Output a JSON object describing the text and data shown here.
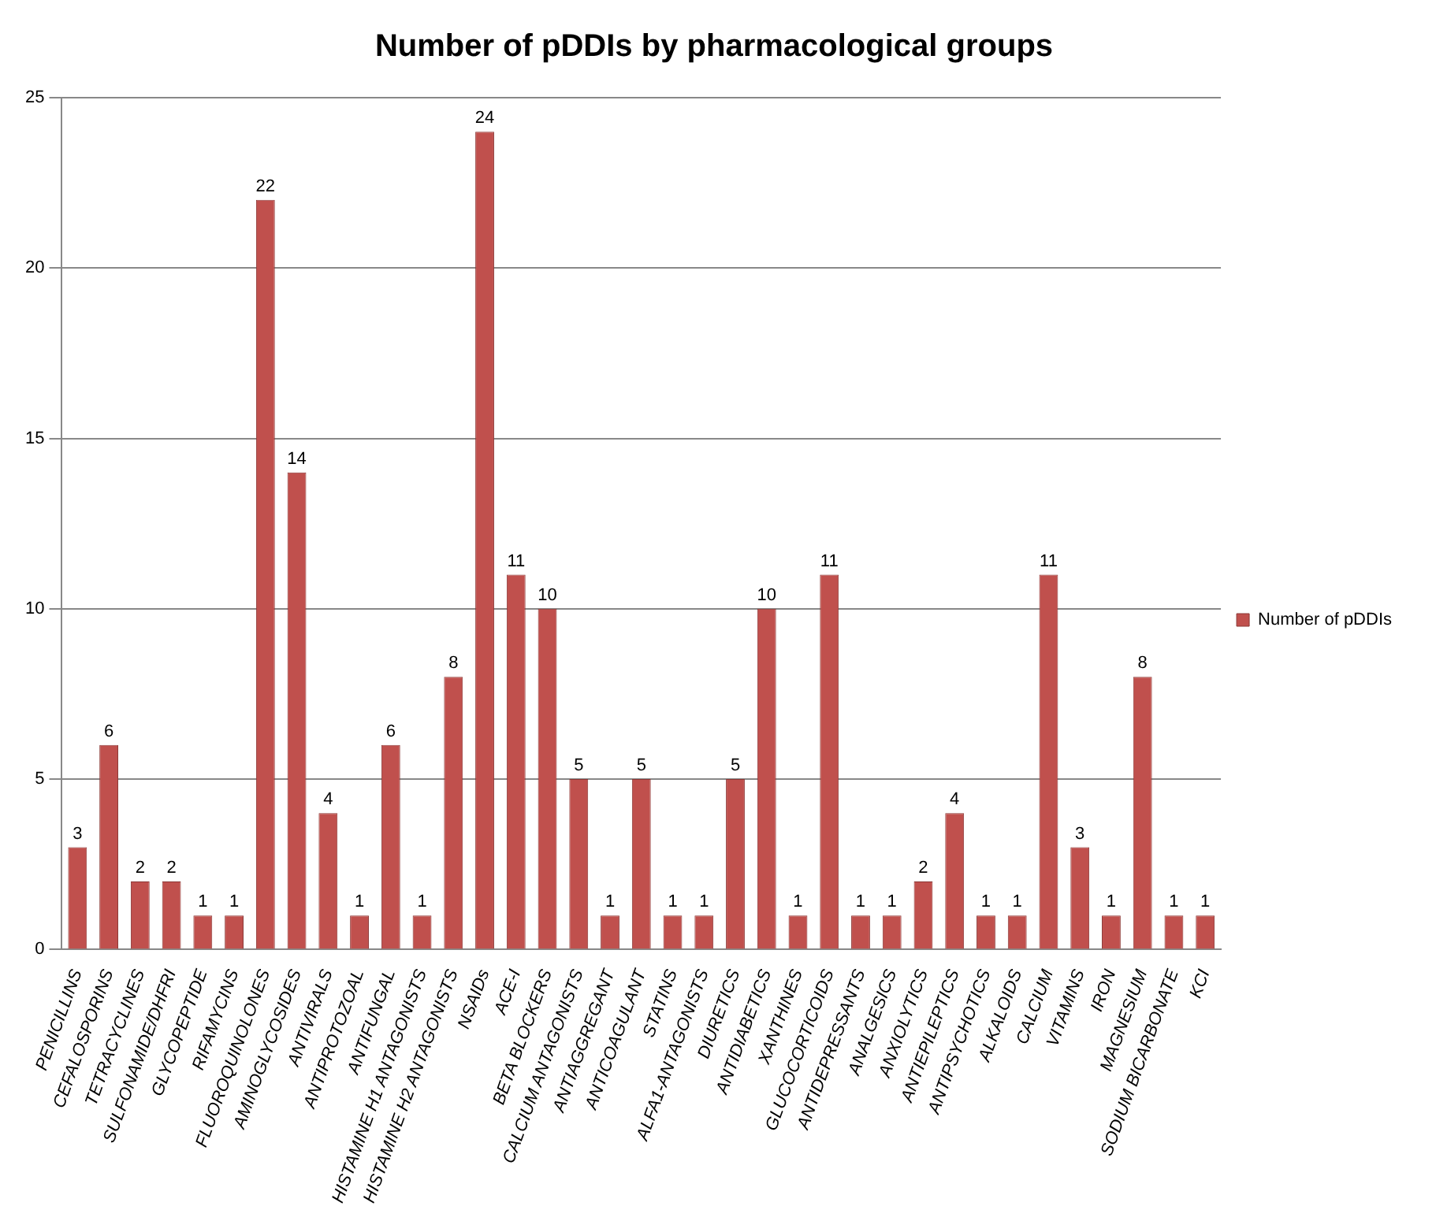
{
  "chart_data": {
    "type": "bar",
    "title": "Number of pDDIs by pharmacological groups",
    "categories": [
      "PENICILLINS",
      "CEFALOSPORINS",
      "TETRACYCLINES",
      "SULFONAMIDE/DHFRI",
      "GLYCOPEPTIDE",
      "RIFAMYCINS",
      "FLUOROQUINOLONES",
      "AMINOGLYCOSIDES",
      "ANTIVIRALS",
      "ANTIPROTOZOAL",
      "ANTIFUNGAL",
      "HISTAMINE H1 ANTAGONISTS",
      "HISTAMINE H2 ANTAGONISTS",
      "NSAIDs",
      "ACE-I",
      "BETA BLOCKERS",
      "CALCIUM ANTAGONISTS",
      "ANTIAGGREGANT",
      "ANTICOAGULANT",
      "STATINS",
      "ALFA1-ANTAGONISTS",
      "DIURETICS",
      "ANTIDIABETICS",
      "XANTHINES",
      "GLUCOCORTICOIDS",
      "ANTIDEPRESSANTS",
      "ANALGESICS",
      "ANXIOLYTICS",
      "ANTIEPILEPTICS",
      "ANTIPSYCHOTICS",
      "ALKALOIDS",
      "CALCIUM",
      "VITAMINS",
      "IRON",
      "MAGNESIUM",
      "SODIUM BICARBONATE",
      "KCI"
    ],
    "series": [
      {
        "name": "Number of pDDIs",
        "color": "#c0504d",
        "values": [
          3,
          6,
          2,
          2,
          1,
          1,
          22,
          14,
          4,
          1,
          6,
          1,
          8,
          24,
          11,
          10,
          5,
          1,
          5,
          1,
          1,
          5,
          10,
          1,
          11,
          1,
          1,
          2,
          4,
          1,
          1,
          11,
          3,
          1,
          8,
          1,
          1
        ]
      }
    ],
    "ylim": [
      0,
      25
    ],
    "yticks": [
      0,
      5,
      10,
      15,
      20,
      25
    ],
    "grid": "y",
    "legend": "right",
    "data_labels": true
  }
}
